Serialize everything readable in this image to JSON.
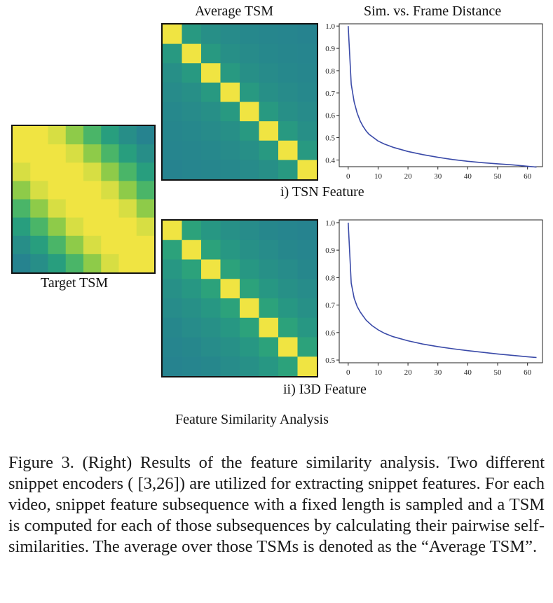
{
  "colors": {
    "line": "#3a4aa8",
    "heat_low": "#26838f",
    "heat_high": "#f0e442"
  },
  "labels": {
    "average_tsm": "Average TSM",
    "sim_vs_distance": "Sim. vs. Frame Distance",
    "target_tsm": "Target TSM",
    "tsn_feature": "i) TSN Feature",
    "i3d_feature": "ii) I3D Feature",
    "analysis_title": "Feature Similarity Analysis"
  },
  "caption": "Figure 3. (Right) Results of the feature similarity analysis. Two different snippet encoders ( [3,26]) are utilized for extracting snippet features. For each video, snippet feature subsequence with a fixed length is sampled and a TSM is computed for each of those subsequences by calculating their pairwise self-similarities. The average over those TSMs is denoted as the “Average TSM”.",
  "chart_data": [
    {
      "type": "heatmap",
      "title": "Target TSM",
      "matrix": [
        [
          1.0,
          1.0,
          0.95,
          0.8,
          0.62,
          0.48,
          0.36,
          0.28
        ],
        [
          1.0,
          1.0,
          1.0,
          0.95,
          0.8,
          0.62,
          0.48,
          0.36
        ],
        [
          0.95,
          1.0,
          1.0,
          1.0,
          0.95,
          0.8,
          0.62,
          0.48
        ],
        [
          0.8,
          0.95,
          1.0,
          1.0,
          1.0,
          0.95,
          0.8,
          0.62
        ],
        [
          0.62,
          0.8,
          0.95,
          1.0,
          1.0,
          1.0,
          0.95,
          0.8
        ],
        [
          0.48,
          0.62,
          0.8,
          0.95,
          1.0,
          1.0,
          1.0,
          0.95
        ],
        [
          0.36,
          0.48,
          0.62,
          0.8,
          0.95,
          1.0,
          1.0,
          1.0
        ],
        [
          0.28,
          0.36,
          0.48,
          0.62,
          0.8,
          0.95,
          1.0,
          1.0
        ]
      ]
    },
    {
      "type": "heatmap",
      "title": "Average TSM",
      "matrix": [
        [
          1.0,
          0.52,
          0.46,
          0.43,
          0.41,
          0.4,
          0.39,
          0.38
        ],
        [
          0.52,
          1.0,
          0.52,
          0.46,
          0.43,
          0.41,
          0.4,
          0.39
        ],
        [
          0.46,
          0.52,
          1.0,
          0.52,
          0.46,
          0.43,
          0.41,
          0.4
        ],
        [
          0.43,
          0.46,
          0.52,
          1.0,
          0.52,
          0.46,
          0.43,
          0.41
        ],
        [
          0.41,
          0.43,
          0.46,
          0.52,
          1.0,
          0.52,
          0.46,
          0.43
        ],
        [
          0.4,
          0.41,
          0.43,
          0.46,
          0.52,
          1.0,
          0.52,
          0.46
        ],
        [
          0.39,
          0.4,
          0.41,
          0.43,
          0.46,
          0.52,
          1.0,
          0.52
        ],
        [
          0.38,
          0.39,
          0.4,
          0.41,
          0.43,
          0.46,
          0.52,
          1.0
        ]
      ]
    },
    {
      "type": "line",
      "title": "Sim. vs. Frame Distance",
      "subtitle": "i) TSN Feature",
      "x": [
        0,
        1,
        2,
        3,
        4,
        5,
        6,
        7,
        8,
        10,
        12,
        15,
        20,
        25,
        30,
        35,
        40,
        45,
        50,
        55,
        60,
        63
      ],
      "y": [
        1.0,
        0.74,
        0.66,
        0.61,
        0.575,
        0.55,
        0.53,
        0.515,
        0.505,
        0.485,
        0.472,
        0.457,
        0.438,
        0.424,
        0.412,
        0.402,
        0.394,
        0.388,
        0.383,
        0.378,
        0.372,
        0.368
      ],
      "xlim": [
        -3,
        65
      ],
      "ylim": [
        0.37,
        1.01
      ],
      "xticks": [
        0,
        10,
        20,
        30,
        40,
        50,
        60
      ],
      "yticks": [
        0.4,
        0.5,
        0.6,
        0.7,
        0.8,
        0.9,
        1.0
      ]
    },
    {
      "type": "heatmap",
      "title": "Average TSM",
      "matrix": [
        [
          1.0,
          0.7,
          0.65,
          0.62,
          0.6,
          0.58,
          0.57,
          0.56
        ],
        [
          0.7,
          1.0,
          0.7,
          0.65,
          0.62,
          0.6,
          0.58,
          0.57
        ],
        [
          0.65,
          0.7,
          1.0,
          0.7,
          0.65,
          0.62,
          0.6,
          0.58
        ],
        [
          0.62,
          0.65,
          0.7,
          1.0,
          0.7,
          0.65,
          0.62,
          0.6
        ],
        [
          0.6,
          0.62,
          0.65,
          0.7,
          1.0,
          0.7,
          0.65,
          0.62
        ],
        [
          0.58,
          0.6,
          0.62,
          0.65,
          0.7,
          1.0,
          0.7,
          0.65
        ],
        [
          0.57,
          0.58,
          0.6,
          0.62,
          0.65,
          0.7,
          1.0,
          0.7
        ],
        [
          0.56,
          0.57,
          0.58,
          0.6,
          0.62,
          0.65,
          0.7,
          1.0
        ]
      ]
    },
    {
      "type": "line",
      "title": "",
      "subtitle": "ii) I3D Feature",
      "x": [
        0,
        1,
        2,
        3,
        4,
        5,
        6,
        7,
        8,
        10,
        12,
        15,
        20,
        25,
        30,
        35,
        40,
        45,
        50,
        55,
        60,
        63
      ],
      "y": [
        1.0,
        0.78,
        0.725,
        0.695,
        0.675,
        0.66,
        0.645,
        0.635,
        0.625,
        0.61,
        0.598,
        0.585,
        0.57,
        0.558,
        0.549,
        0.541,
        0.534,
        0.528,
        0.522,
        0.517,
        0.512,
        0.509
      ],
      "xlim": [
        -3,
        65
      ],
      "ylim": [
        0.49,
        1.01
      ],
      "xticks": [
        0,
        10,
        20,
        30,
        40,
        50,
        60
      ],
      "yticks": [
        0.5,
        0.6,
        0.7,
        0.8,
        0.9,
        1.0
      ]
    }
  ]
}
